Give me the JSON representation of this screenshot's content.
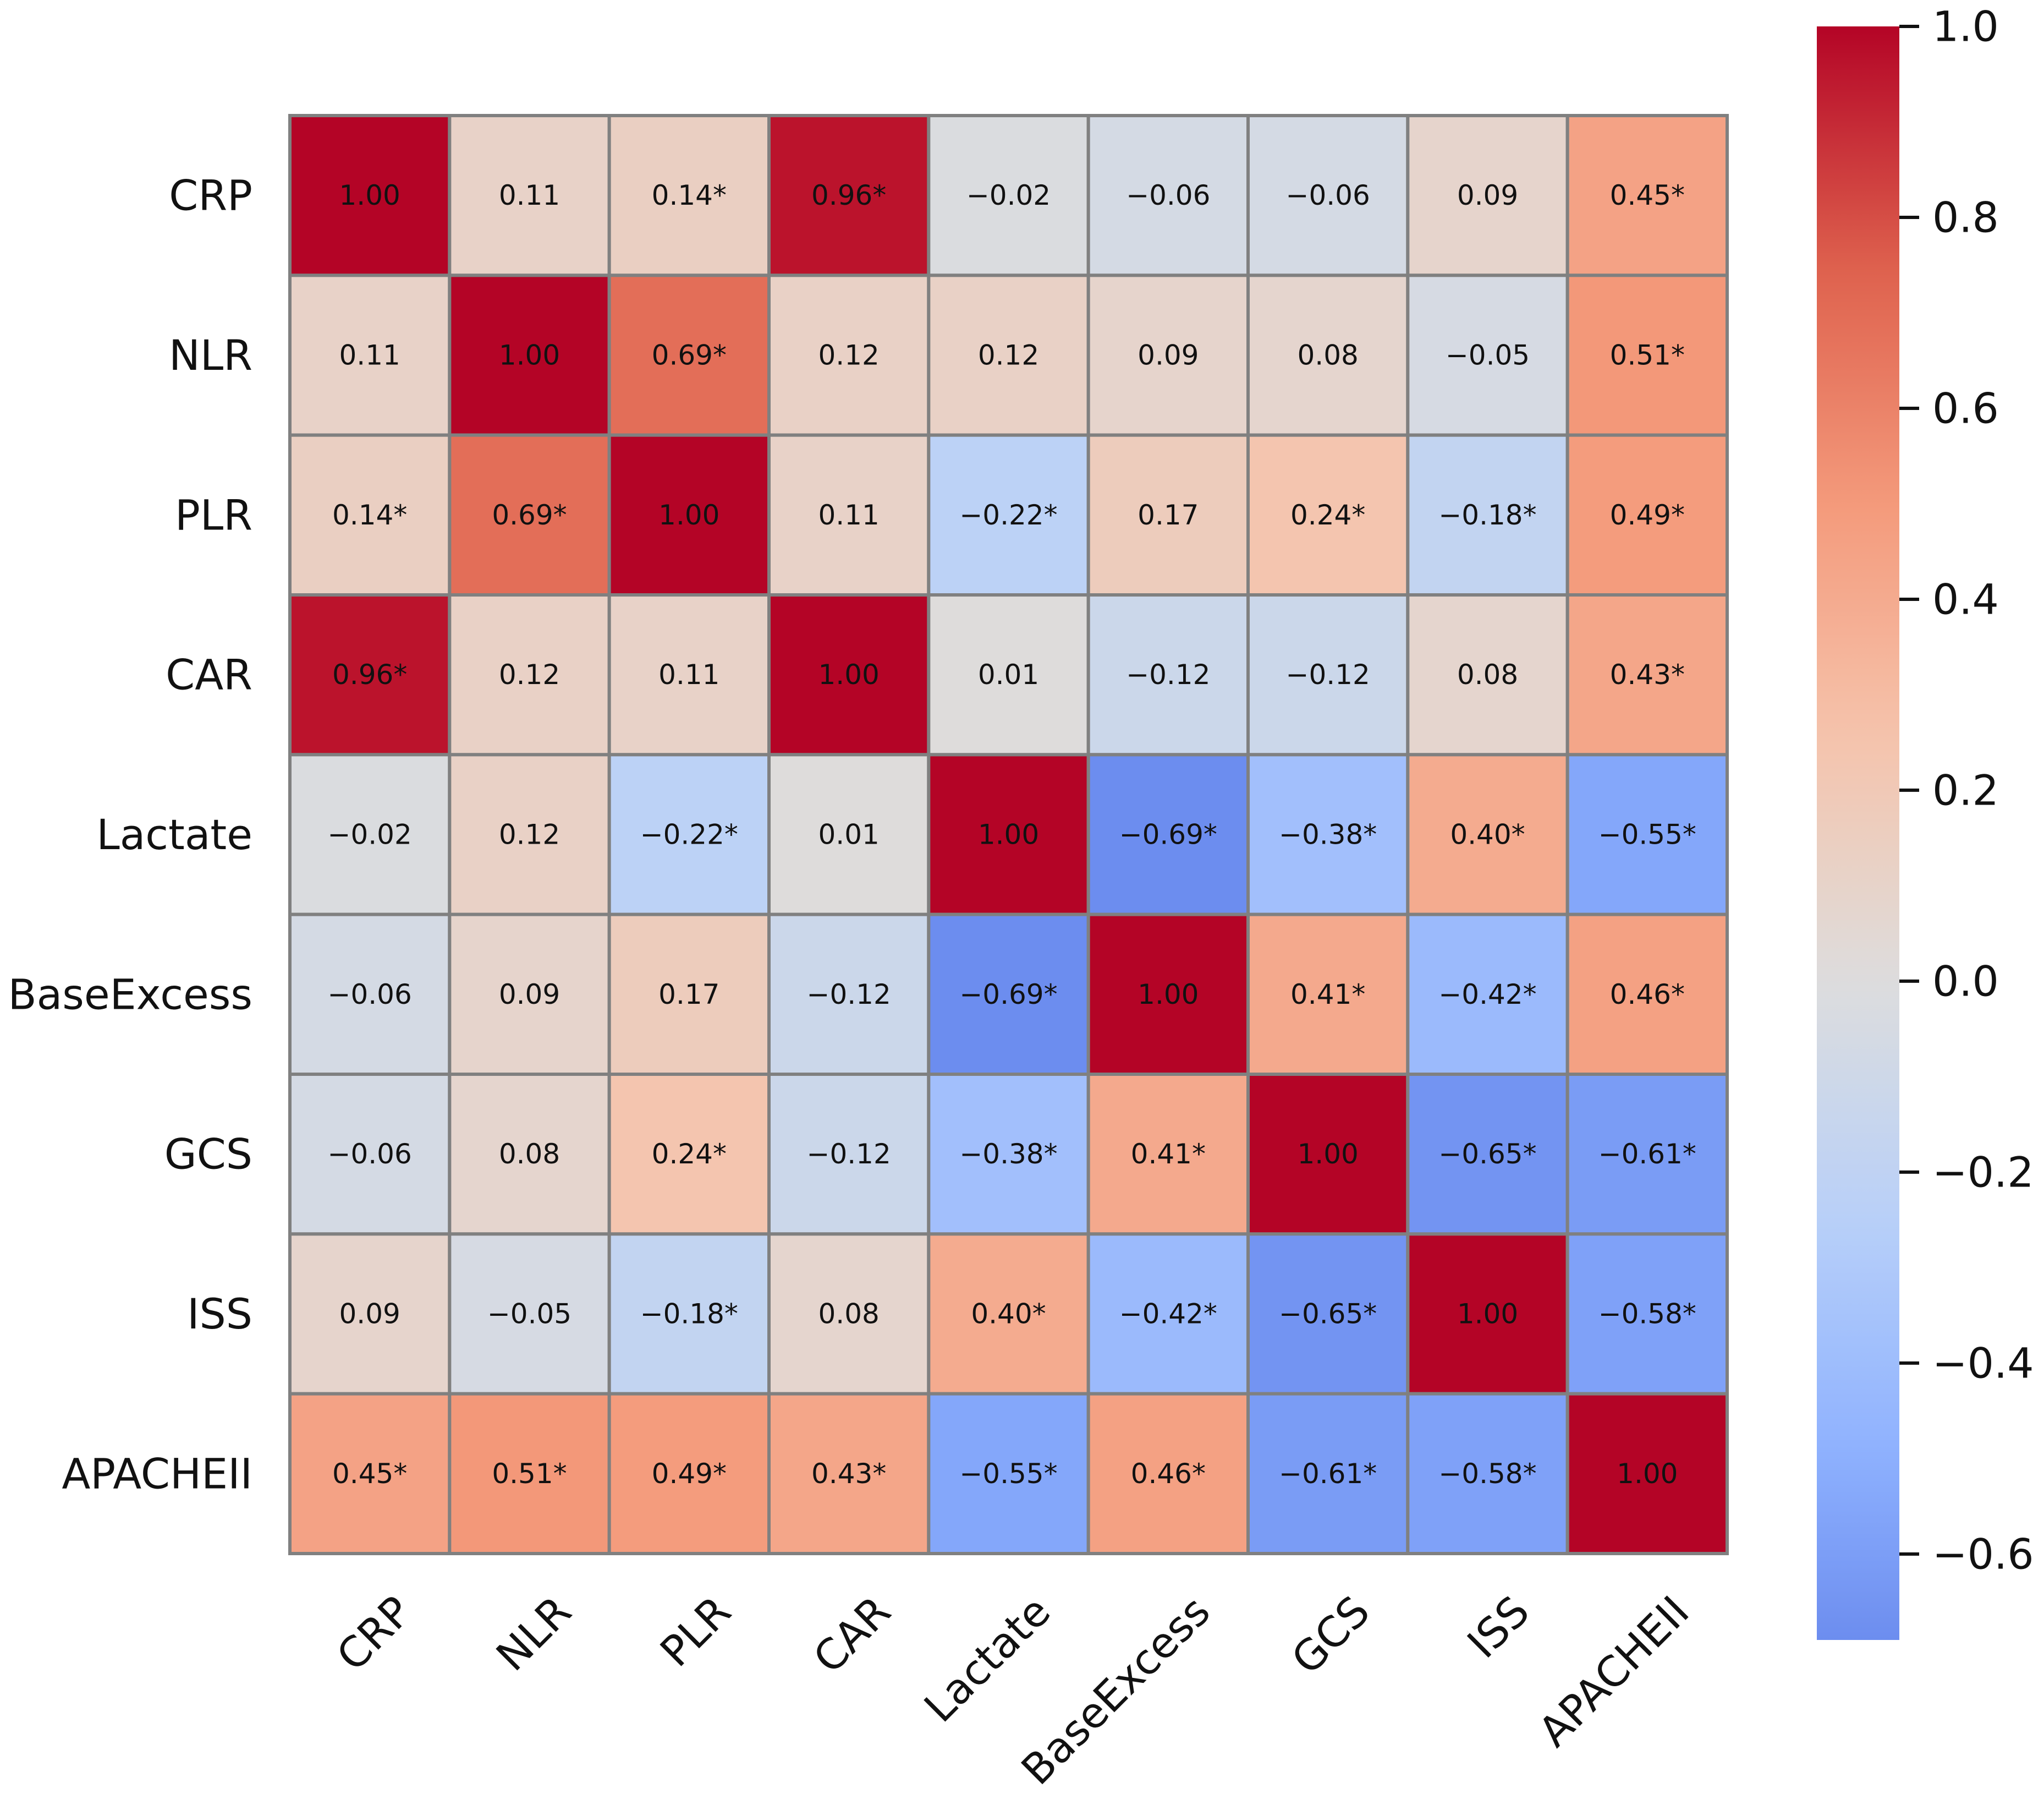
{
  "chart_data": {
    "type": "heatmap",
    "title": "",
    "xlabel": "",
    "ylabel": "",
    "row_labels": [
      "CRP",
      "NLR",
      "PLR",
      "CAR",
      "Lactate",
      "BaseExcess",
      "GCS",
      "ISS",
      "APACHEII"
    ],
    "col_labels": [
      "CRP",
      "NLR",
      "PLR",
      "CAR",
      "Lactate",
      "BaseExcess",
      "GCS",
      "ISS",
      "APACHEII"
    ],
    "values": [
      [
        1.0,
        0.11,
        0.14,
        0.96,
        -0.02,
        -0.06,
        -0.06,
        0.09,
        0.45
      ],
      [
        0.11,
        1.0,
        0.69,
        0.12,
        0.12,
        0.09,
        0.08,
        -0.05,
        0.51
      ],
      [
        0.14,
        0.69,
        1.0,
        0.11,
        -0.22,
        0.17,
        0.24,
        -0.18,
        0.49
      ],
      [
        0.96,
        0.12,
        0.11,
        1.0,
        0.01,
        -0.12,
        -0.12,
        0.08,
        0.43
      ],
      [
        -0.02,
        0.12,
        -0.22,
        0.01,
        1.0,
        -0.69,
        -0.38,
        0.4,
        -0.55
      ],
      [
        -0.06,
        0.09,
        0.17,
        -0.12,
        -0.69,
        1.0,
        0.41,
        -0.42,
        0.46
      ],
      [
        -0.06,
        0.08,
        0.24,
        -0.12,
        -0.38,
        0.41,
        1.0,
        -0.65,
        -0.61
      ],
      [
        0.09,
        -0.05,
        -0.18,
        0.08,
        0.4,
        -0.42,
        -0.65,
        1.0,
        -0.58
      ],
      [
        0.45,
        0.51,
        0.49,
        0.43,
        -0.55,
        0.46,
        -0.61,
        -0.58,
        1.0
      ]
    ],
    "cell_text": [
      [
        "1.00",
        "0.11",
        "0.14*",
        "0.96*",
        "−0.02",
        "−0.06",
        "−0.06",
        "0.09",
        "0.45*"
      ],
      [
        "0.11",
        "1.00",
        "0.69*",
        "0.12",
        "0.12",
        "0.09",
        "0.08",
        "−0.05",
        "0.51*"
      ],
      [
        "0.14*",
        "0.69*",
        "1.00",
        "0.11",
        "−0.22*",
        "0.17",
        "0.24*",
        "−0.18*",
        "0.49*"
      ],
      [
        "0.96*",
        "0.12",
        "0.11",
        "1.00",
        "0.01",
        "−0.12",
        "−0.12",
        "0.08",
        "0.43*"
      ],
      [
        "−0.02",
        "0.12",
        "−0.22*",
        "0.01",
        "1.00",
        "−0.69*",
        "−0.38*",
        "0.40*",
        "−0.55*"
      ],
      [
        "−0.06",
        "0.09",
        "0.17",
        "−0.12",
        "−0.69*",
        "1.00",
        "0.41*",
        "−0.42*",
        "0.46*"
      ],
      [
        "−0.06",
        "0.08",
        "0.24*",
        "−0.12",
        "−0.38*",
        "0.41*",
        "1.00",
        "−0.65*",
        "−0.61*"
      ],
      [
        "0.09",
        "−0.05",
        "−0.18*",
        "0.08",
        "0.40*",
        "−0.42*",
        "−0.65*",
        "1.00",
        "−0.58*"
      ],
      [
        "0.45*",
        "0.51*",
        "0.49*",
        "0.43*",
        "−0.55*",
        "0.46*",
        "−0.61*",
        "−0.58*",
        "1.00"
      ]
    ],
    "colormap": "coolwarm",
    "color_range": [
      -0.69,
      1.0
    ],
    "colorbar_ticks": [
      1.0,
      0.8,
      0.6,
      0.4,
      0.2,
      0.0,
      -0.2,
      -0.4,
      -0.6
    ],
    "colorbar_tick_labels": [
      "1.0",
      "0.8",
      "0.6",
      "0.4",
      "0.2",
      "0.0",
      "−0.2",
      "−0.4",
      "−0.6"
    ],
    "grid_color": "#808080",
    "colorbar_placement": "right"
  }
}
